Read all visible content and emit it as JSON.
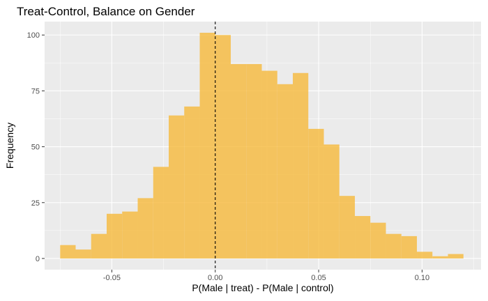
{
  "chart_data": {
    "type": "bar",
    "title": "Treat-Control, Balance on Gender",
    "xlabel": "P(Male | treat) - P(Male | control)",
    "ylabel": "Frequency",
    "xlim": [
      -0.0825,
      0.1285
    ],
    "ylim": [
      -5,
      106
    ],
    "x_ticks": [
      -0.05,
      0.0,
      0.05,
      0.1
    ],
    "x_tick_labels": [
      "-0.05",
      "0.00",
      "0.05",
      "0.10"
    ],
    "y_ticks": [
      0,
      25,
      50,
      75,
      100
    ],
    "y_tick_labels": [
      "0",
      "25",
      "50",
      "75",
      "100"
    ],
    "bin_width": 0.0075,
    "bins": [
      {
        "start": -0.075,
        "count": 6
      },
      {
        "start": -0.0675,
        "count": 4
      },
      {
        "start": -0.06,
        "count": 11
      },
      {
        "start": -0.0525,
        "count": 20
      },
      {
        "start": -0.045,
        "count": 21
      },
      {
        "start": -0.0375,
        "count": 27
      },
      {
        "start": -0.03,
        "count": 41
      },
      {
        "start": -0.0225,
        "count": 64
      },
      {
        "start": -0.015,
        "count": 68
      },
      {
        "start": -0.0075,
        "count": 101
      },
      {
        "start": 0.0,
        "count": 100
      },
      {
        "start": 0.0075,
        "count": 87
      },
      {
        "start": 0.015,
        "count": 87
      },
      {
        "start": 0.0225,
        "count": 84
      },
      {
        "start": 0.03,
        "count": 78
      },
      {
        "start": 0.0375,
        "count": 83
      },
      {
        "start": 0.045,
        "count": 58
      },
      {
        "start": 0.0525,
        "count": 51
      },
      {
        "start": 0.06,
        "count": 28
      },
      {
        "start": 0.0675,
        "count": 19
      },
      {
        "start": 0.075,
        "count": 16
      },
      {
        "start": 0.0825,
        "count": 11
      },
      {
        "start": 0.09,
        "count": 10
      },
      {
        "start": 0.0975,
        "count": 3
      },
      {
        "start": 0.105,
        "count": 1
      },
      {
        "start": 0.1125,
        "count": 2
      },
      {
        "start": 0.12,
        "count": 0
      },
      {
        "start": 0.1275,
        "count": 0
      }
    ],
    "reference_line": {
      "x": 0.0,
      "style": "dashed",
      "color": "#000000"
    },
    "bar_color": "#F6B93B",
    "bar_opacity": 0.8,
    "panel_background": "#EBEBEB",
    "grid_major_color": "#FFFFFF",
    "grid": true,
    "legend": "none"
  }
}
